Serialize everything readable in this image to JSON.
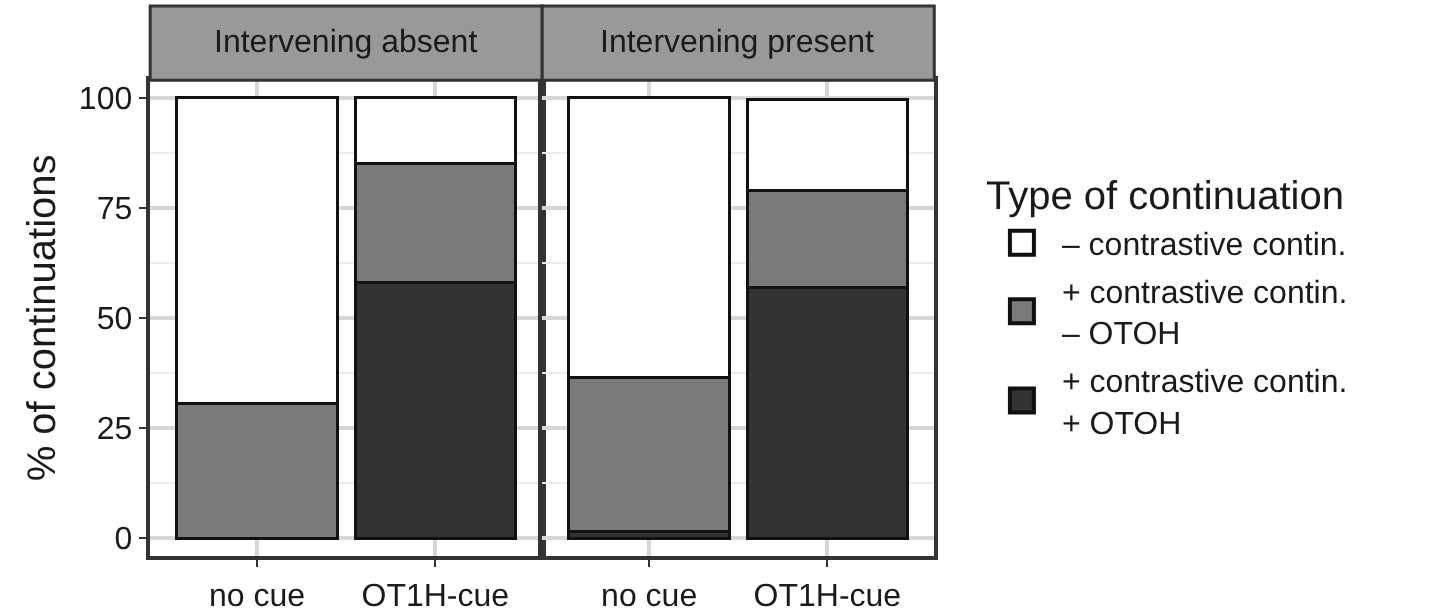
{
  "chart_data": [
    {
      "type": "bar",
      "title": "Intervening absent",
      "ylabel": "% of continuations",
      "categories": [
        "no cue",
        "OT1H-cue"
      ],
      "stacked": true,
      "ylim": [
        -4,
        104
      ],
      "yticks": [
        0,
        25,
        50,
        75,
        100
      ],
      "grid": true,
      "legend": "right",
      "legend_title": "Type of continuation",
      "series": [
        {
          "name": "+ contrastive contin.\n+ OTOH",
          "color": "#333333",
          "values": [
            0,
            58
          ]
        },
        {
          "name": "+ contrastive contin.\n– OTOH",
          "color": "#7a7a7a",
          "values": [
            30.5,
            27
          ]
        },
        {
          "name": "– contrastive contin.",
          "color": "#ffffff",
          "values": [
            69.5,
            15
          ]
        }
      ]
    },
    {
      "type": "bar",
      "title": "Intervening present",
      "categories": [
        "no cue",
        "OT1H-cue"
      ],
      "stacked": true,
      "ylim": [
        -4,
        104
      ],
      "yticks": [
        0,
        25,
        50,
        75,
        100
      ],
      "grid": true,
      "tick_labels": "x",
      "series": [
        {
          "color": "#333333",
          "values": [
            1.5,
            57
          ]
        },
        {
          "color": "#7a7a7a",
          "values": [
            35,
            22
          ]
        },
        {
          "color": "#ffffff",
          "values": [
            63.5,
            20.5
          ]
        }
      ]
    }
  ]
}
